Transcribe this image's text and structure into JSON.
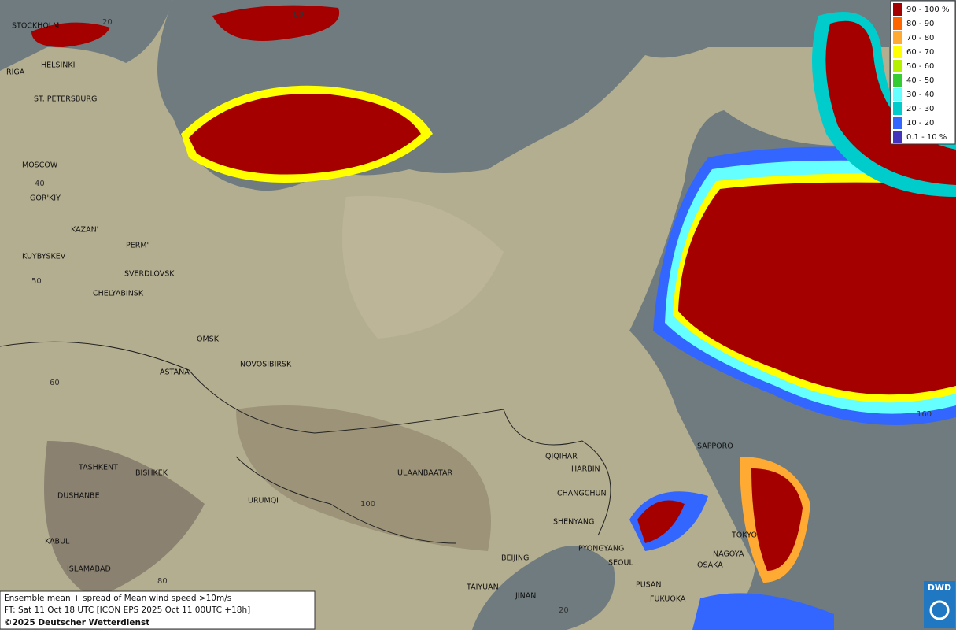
{
  "map": {
    "cities": [
      "STOCKHOLM",
      "HELSINKI",
      "RIGA",
      "ST. PETERSBURG",
      "MOSCOW",
      "GOR'KIY",
      "KAZAN'",
      "PERM'",
      "KUYBYSKEV",
      "SVERDLOVSK",
      "CHELYABINSK",
      "OMSK",
      "NOVOSIBIRSK",
      "ASTANA",
      "TASHKENT",
      "BISHKEK",
      "DUSHANBE",
      "URUMQI",
      "KABUL",
      "ISLAMABAD",
      "ULAANBAATAR",
      "QIQIHAR",
      "HARBIN",
      "CHANGCHUN",
      "SHENYANG",
      "PYONGYANG",
      "BEIJING",
      "SEOUL",
      "TAIYUAN",
      "JINAN",
      "PUSAN",
      "FUKUOKA",
      "SAPPORO",
      "TOKYO",
      "NAGOYA",
      "OSAKA"
    ],
    "grid_labels": [
      "20",
      "80",
      "40",
      "50",
      "60",
      "100",
      "80",
      "20",
      "160"
    ]
  },
  "legend": [
    {
      "label": "90 - 100 %",
      "color": "#a40000"
    },
    {
      "label": "80 - 90",
      "color": "#ff6600"
    },
    {
      "label": "70 - 80",
      "color": "#ffaa33"
    },
    {
      "label": "60 - 70",
      "color": "#ffff00"
    },
    {
      "label": "50 - 60",
      "color": "#b4f000"
    },
    {
      "label": "40 - 50",
      "color": "#33cc33"
    },
    {
      "label": "30 - 40",
      "color": "#66ffff"
    },
    {
      "label": "20 - 30",
      "color": "#00cccc"
    },
    {
      "label": "10 - 20",
      "color": "#3366ff"
    },
    {
      "label": "0.1 - 10 %",
      "color": "#4433bb"
    }
  ],
  "caption": [
    "Ensemble mean + spread of Mean wind speed >10m/s",
    "FT: Sat 11 Oct 18 UTC [ICON EPS 2025 Oct 11 00UTC +18h]",
    "©2025 Deutscher Wetterdienst"
  ],
  "logo": "DWD"
}
